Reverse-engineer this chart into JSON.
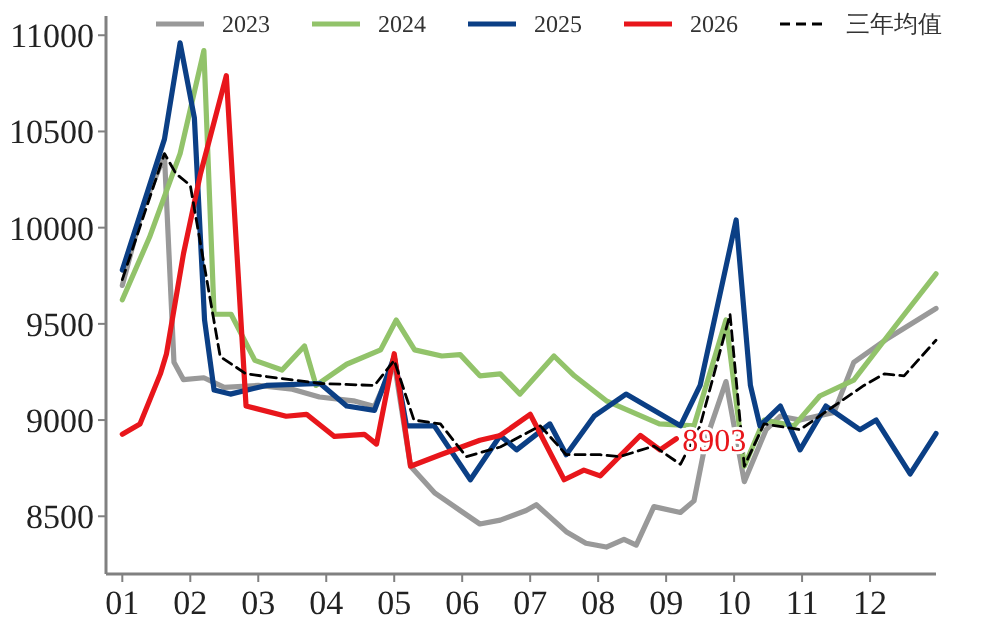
{
  "chart_data": {
    "type": "line",
    "legend": "top",
    "xlim": [
      0.76,
      12.97
    ],
    "ylim": [
      8200,
      11100
    ],
    "xticks": [
      {
        "value": 1,
        "label": "01"
      },
      {
        "value": 2,
        "label": "02"
      },
      {
        "value": 3,
        "label": "03"
      },
      {
        "value": 4,
        "label": "04"
      },
      {
        "value": 5,
        "label": "05"
      },
      {
        "value": 6,
        "label": "06"
      },
      {
        "value": 7,
        "label": "07"
      },
      {
        "value": 8,
        "label": "08"
      },
      {
        "value": 9,
        "label": "09"
      },
      {
        "value": 10,
        "label": "10"
      },
      {
        "value": 11,
        "label": "11"
      },
      {
        "value": 12,
        "label": "12"
      }
    ],
    "yticks": [
      8500,
      9000,
      9500,
      10000,
      10500,
      11000
    ],
    "annotations": [
      {
        "text": "8903",
        "x": 9.15,
        "y": 8903
      }
    ],
    "series": [
      {
        "name": "2023",
        "color": "#999999",
        "x": [
          1.0,
          1.3,
          1.62,
          1.76,
          1.9,
          2.2,
          2.5,
          3.0,
          3.5,
          3.9,
          4.4,
          4.71,
          5.0,
          5.24,
          5.6,
          5.97,
          6.26,
          6.56,
          6.94,
          7.09,
          7.53,
          7.82,
          8.12,
          8.38,
          8.56,
          8.82,
          9.21,
          9.41,
          9.59,
          9.88,
          10.15,
          10.47,
          10.68,
          10.97,
          11.47,
          11.76,
          12.24,
          12.97
        ],
        "values": [
          9700,
          10100,
          10375,
          9300,
          9210,
          9220,
          9170,
          9180,
          9160,
          9120,
          9100,
          9070,
          9300,
          8760,
          8620,
          8530,
          8460,
          8480,
          8530,
          8560,
          8420,
          8360,
          8340,
          8380,
          8350,
          8550,
          8520,
          8580,
          8900,
          9200,
          8680,
          8950,
          9020,
          9000,
          9040,
          9300,
          9420,
          9580
        ]
      },
      {
        "name": "2024",
        "color": "#92c36a",
        "x": [
          1.0,
          1.4,
          1.85,
          2.2,
          2.35,
          2.6,
          2.95,
          3.35,
          3.68,
          3.85,
          4.3,
          4.8,
          5.03,
          5.3,
          5.7,
          5.97,
          6.26,
          6.56,
          6.85,
          7.35,
          7.65,
          8.12,
          8.9,
          9.41,
          9.88,
          10.15,
          10.44,
          10.88,
          11.26,
          11.76,
          12.44,
          12.97
        ],
        "values": [
          9625,
          9950,
          10385,
          10920,
          9550,
          9550,
          9310,
          9260,
          9385,
          9180,
          9290,
          9365,
          9520,
          9365,
          9333,
          9340,
          9230,
          9240,
          9135,
          9333,
          9230,
          9100,
          8980,
          8970,
          9520,
          8760,
          9000,
          8970,
          9125,
          9208,
          9520,
          9760
        ]
      },
      {
        "name": "2025",
        "color": "#0b3f85",
        "x": [
          1.0,
          1.62,
          1.85,
          2.06,
          2.21,
          2.35,
          2.59,
          3.12,
          3.91,
          4.3,
          4.71,
          5.0,
          5.18,
          5.59,
          6.12,
          6.56,
          6.8,
          7.29,
          7.53,
          7.94,
          8.41,
          9.21,
          9.5,
          10.03,
          10.24,
          10.38,
          10.68,
          10.97,
          11.35,
          11.85,
          12.09,
          12.59,
          12.97
        ],
        "values": [
          9780,
          10460,
          10960,
          10570,
          9520,
          9156,
          9135,
          9180,
          9190,
          9073,
          9050,
          9330,
          8970,
          8970,
          8690,
          8920,
          8845,
          8980,
          8820,
          9020,
          9135,
          8970,
          9180,
          10040,
          9180,
          8970,
          9073,
          8845,
          9073,
          8950,
          9000,
          8720,
          8930
        ]
      },
      {
        "name": "2026",
        "color": "#e8161b",
        "x": [
          1.0,
          1.26,
          1.56,
          1.65,
          1.9,
          2.15,
          2.53,
          2.82,
          3.41,
          3.71,
          4.12,
          4.56,
          4.74,
          5.0,
          5.24,
          5.68,
          6.26,
          6.56,
          7.0,
          7.5,
          7.79,
          8.03,
          8.62,
          8.91,
          9.15
        ],
        "values": [
          8926,
          8980,
          9240,
          9345,
          9865,
          10280,
          10790,
          9073,
          9020,
          9030,
          8915,
          8926,
          8875,
          9345,
          8760,
          8820,
          8895,
          8920,
          9030,
          8690,
          8740,
          8710,
          8920,
          8845,
          8903
        ]
      },
      {
        "name": "三年均值",
        "color": "#000000",
        "line_style": "dashed",
        "x": [
          1.0,
          1.62,
          1.79,
          2.0,
          2.44,
          2.82,
          3.91,
          4.71,
          5.0,
          5.29,
          5.68,
          6.06,
          6.56,
          7.15,
          7.53,
          8.03,
          8.32,
          8.82,
          9.21,
          9.5,
          9.94,
          10.15,
          10.44,
          10.97,
          11.47,
          11.91,
          12.21,
          12.5,
          12.97
        ],
        "values": [
          9730,
          10385,
          10280,
          10220,
          9330,
          9240,
          9190,
          9180,
          9310,
          9000,
          8980,
          8810,
          8860,
          8970,
          8820,
          8820,
          8810,
          8865,
          8770,
          8970,
          9550,
          8760,
          8980,
          8950,
          9073,
          9180,
          9240,
          9230,
          9415
        ]
      }
    ]
  }
}
